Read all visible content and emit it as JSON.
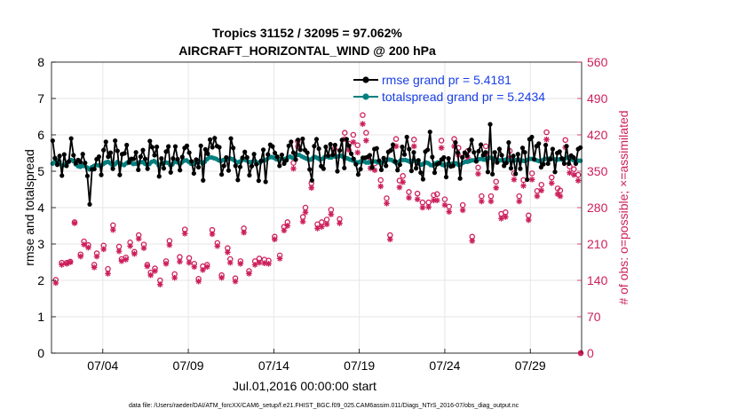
{
  "chart_data": {
    "type": "line",
    "title_line1": "Tropics 31152 / 32095 = 97.062%",
    "title_line2": "AIRCRAFT_HORIZONTAL_WIND @ 200 hPa",
    "xlabel": "Jul.01,2016 00:00:00 start",
    "ylabel_left": "rmse and totalspread",
    "ylabel_right": "# of obs: o=possible; ×=assimilated",
    "footnote": "data file: /Users/raeder/DAI/ATM_forcXX/CAM6_setup/f.e21.FHIST_BGC.f09_025.CAM6assim.011/Diags_NTrS_2016-07/obs_diag_output.nc",
    "x_ticks": [
      {
        "x": 3.0,
        "label": "07/04"
      },
      {
        "x": 8.0,
        "label": "07/09"
      },
      {
        "x": 13.0,
        "label": "07/14"
      },
      {
        "x": 18.0,
        "label": "07/19"
      },
      {
        "x": 23.0,
        "label": "07/24"
      },
      {
        "x": 28.0,
        "label": "07/29"
      }
    ],
    "xlim": [
      0,
      31
    ],
    "ylim_left": [
      0,
      8
    ],
    "y_ticks_left": [
      "0",
      "1",
      "2",
      "3",
      "4",
      "5",
      "6",
      "7",
      "8"
    ],
    "ylim_right": [
      0,
      560
    ],
    "y_ticks_right": [
      "0",
      "70",
      "140",
      "210",
      "280",
      "350",
      "420",
      "490",
      "560"
    ],
    "grid": true,
    "legend": {
      "position": "top-right",
      "entries": [
        {
          "label": "rmse grand pr = 5.4181",
          "color": "#000000"
        },
        {
          "label": "totalspread grand pr = 5.2434",
          "color": "#00807f"
        }
      ]
    },
    "series": [
      {
        "name": "rmse",
        "color": "#000000",
        "values": [
          5.84,
          5.36,
          5.18,
          5.42,
          4.88,
          5.46,
          5.15,
          5.27,
          5.9,
          5.44,
          5.22,
          5.31,
          5.25,
          5.47,
          5.23,
          4.87,
          4.09,
          5.05,
          5.06,
          5.33,
          5.4,
          4.9,
          5.58,
          5.81,
          5.4,
          5.51,
          5.07,
          5.84,
          5.56,
          4.9,
          5.47,
          5.49,
          5.72,
          5.24,
          5.34,
          5.34,
          5.52,
          5.04,
          5.4,
          5.58,
          5.34,
          5.07,
          5.83,
          5.66,
          5.44,
          5.67,
          4.86,
          5.35,
          5.08,
          5.54,
          5.68,
          4.97,
          5.35,
          5.68,
          5.33,
          5.03,
          5.39,
          5.64,
          5.7,
          5.51,
          5.27,
          4.94,
          5.32,
          5.11,
          5.7,
          4.75,
          5.6,
          5.48,
          5.87,
          5.66,
          5.91,
          5.69,
          5.66,
          4.91,
          5.15,
          5.38,
          5.02,
          5.9,
          5.64,
          5.15,
          4.76,
          5.12,
          5.37,
          5.53,
          5.38,
          4.89,
          5.14,
          5.47,
          5.19,
          4.74,
          5.28,
          5.59,
          4.71,
          5.46,
          5.73,
          5.68,
          5.5,
          5.4,
          5.15,
          5.45,
          5.21,
          5.3,
          5.7,
          5.81,
          5.51,
          5.32,
          5.86,
          5.59,
          5.89,
          5.58,
          5.51,
          5.05,
          4.75,
          5.69,
          5.88,
          5.62,
          5.14,
          5.07,
          5.67,
          5.43,
          5.74,
          5.45,
          5.72,
          5.0,
          5.57,
          5.86,
          5.09,
          5.88,
          5.7,
          5.48,
          5.34,
          5.19,
          4.91,
          5.06,
          5.37,
          5.37,
          5.39,
          5.44,
          5.1,
          5.61,
          5.63,
          5.29,
          5.04,
          5.36,
          5.15,
          5.53,
          5.57,
          5.73,
          5.27,
          5.03,
          5.18,
          5.67,
          5.46,
          5.94,
          5.61,
          5.01,
          5.52,
          5.08,
          5.3,
          4.96,
          4.78,
          5.54,
          5.59,
          6.08,
          5.39,
          4.96,
          5.19,
          5.22,
          5.32,
          5.38,
          4.84,
          5.35,
          5.13,
          5.15,
          5.79,
          5.51,
          4.8,
          5.38,
          5.51,
          5.43,
          5.59,
          5.86,
          5.52,
          5.27,
          5.55,
          5.73,
          5.44,
          5.52,
          4.98,
          6.29,
          4.92,
          5.52,
          5.24,
          5.61,
          5.44,
          5.15,
          5.23,
          5.79,
          5.08,
          5.42,
          4.93,
          5.47,
          5.07,
          5.64,
          5.52,
          4.77,
          5.88,
          5.94,
          5.33,
          5.69,
          5.76,
          5.11,
          5.19,
          5.72,
          5.21,
          5.33,
          5.61,
          4.98,
          5.5,
          5.54,
          5.35,
          5.21,
          5.69,
          5.21,
          5.43,
          5.38,
          5.21,
          5.61,
          5.65
        ]
      },
      {
        "name": "totalspread",
        "color": "#00807f",
        "values": [
          5.21,
          5.26,
          5.3,
          5.26,
          5.16,
          5.17,
          5.21,
          5.26,
          5.31,
          5.28,
          5.19,
          5.14,
          5.12,
          5.15,
          5.14,
          5.1,
          5.05,
          5.11,
          5.15,
          5.17,
          5.16,
          5.15,
          5.2,
          5.24,
          5.26,
          5.22,
          5.15,
          5.19,
          5.25,
          5.22,
          5.19,
          5.17,
          5.22,
          5.27,
          5.24,
          5.2,
          5.21,
          5.23,
          5.25,
          5.25,
          5.21,
          5.17,
          5.2,
          5.26,
          5.28,
          5.24,
          5.16,
          5.2,
          5.22,
          5.24,
          5.23,
          5.17,
          5.19,
          5.26,
          5.25,
          5.22,
          5.24,
          5.29,
          5.3,
          5.26,
          5.21,
          5.2,
          5.24,
          5.27,
          5.26,
          5.22,
          5.26,
          5.33,
          5.38,
          5.38,
          5.36,
          5.34,
          5.3,
          5.28,
          5.31,
          5.33,
          5.34,
          5.35,
          5.33,
          5.29,
          5.24,
          5.26,
          5.3,
          5.32,
          5.3,
          5.26,
          5.25,
          5.27,
          5.27,
          5.23,
          5.24,
          5.29,
          5.3,
          5.33,
          5.38,
          5.39,
          5.37,
          5.33,
          5.32,
          5.34,
          5.33,
          5.34,
          5.38,
          5.4,
          5.37,
          5.38,
          5.45,
          5.45,
          5.41,
          5.38,
          5.35,
          5.32,
          5.32,
          5.37,
          5.39,
          5.36,
          5.32,
          5.34,
          5.39,
          5.4,
          5.38,
          5.38,
          5.41,
          5.4,
          5.41,
          5.43,
          5.39,
          5.37,
          5.35,
          5.32,
          5.3,
          5.27,
          5.24,
          5.25,
          5.28,
          5.27,
          5.24,
          5.24,
          5.25,
          5.27,
          5.27,
          5.25,
          5.23,
          5.24,
          5.27,
          5.31,
          5.32,
          5.31,
          5.27,
          5.23,
          5.25,
          5.3,
          5.31,
          5.31,
          5.29,
          5.26,
          5.28,
          5.29,
          5.26,
          5.21,
          5.18,
          5.21,
          5.24,
          5.22,
          5.17,
          5.16,
          5.21,
          5.24,
          5.23,
          5.18,
          5.16,
          5.19,
          5.2,
          5.2,
          5.22,
          5.22,
          5.18,
          5.18,
          5.23,
          5.26,
          5.26,
          5.28,
          5.3,
          5.3,
          5.3,
          5.33,
          5.34,
          5.32,
          5.32,
          5.36,
          5.37,
          5.35,
          5.33,
          5.31,
          5.3,
          5.3,
          5.31,
          5.33,
          5.3,
          5.29,
          5.29,
          5.31,
          5.31,
          5.31,
          5.29,
          5.28,
          5.31,
          5.34,
          5.34,
          5.32,
          5.3,
          5.28,
          5.28,
          5.32,
          5.34,
          5.34,
          5.36,
          5.34,
          5.32,
          5.32,
          5.33,
          5.32,
          5.33,
          5.37,
          5.37,
          5.33,
          5.3,
          5.29,
          5.29,
          5.29
        ]
      }
    ],
    "obs_possible": [
      [
        0.25,
        141
      ],
      [
        0.6,
        174
      ],
      [
        0.9,
        174
      ],
      [
        1.1,
        176
      ],
      [
        1.35,
        252
      ],
      [
        1.7,
        190
      ],
      [
        1.9,
        215
      ],
      [
        2.15,
        208
      ],
      [
        2.5,
        170
      ],
      [
        2.65,
        192
      ],
      [
        3.05,
        207
      ],
      [
        3.3,
        162
      ],
      [
        3.6,
        246
      ],
      [
        3.95,
        205
      ],
      [
        4.1,
        181
      ],
      [
        4.35,
        184
      ],
      [
        4.6,
        213
      ],
      [
        4.85,
        195
      ],
      [
        5.1,
        227
      ],
      [
        5.4,
        209
      ],
      [
        5.6,
        170
      ],
      [
        5.8,
        155
      ],
      [
        6.05,
        163
      ],
      [
        6.35,
        140
      ],
      [
        6.7,
        177
      ],
      [
        6.9,
        216
      ],
      [
        7.2,
        152
      ],
      [
        7.5,
        185
      ],
      [
        7.8,
        238
      ],
      [
        8.05,
        183
      ],
      [
        8.35,
        172
      ],
      [
        8.6,
        143
      ],
      [
        8.85,
        167
      ],
      [
        9.1,
        170
      ],
      [
        9.4,
        237
      ],
      [
        9.7,
        212
      ],
      [
        9.95,
        150
      ],
      [
        10.3,
        202
      ],
      [
        10.45,
        181
      ],
      [
        10.75,
        144
      ],
      [
        11.05,
        177
      ],
      [
        11.25,
        240
      ],
      [
        11.55,
        158
      ],
      [
        11.9,
        177
      ],
      [
        12.15,
        182
      ],
      [
        12.45,
        180
      ],
      [
        12.7,
        178
      ],
      [
        13.05,
        224
      ],
      [
        13.35,
        188
      ],
      [
        13.6,
        243
      ],
      [
        13.8,
        252
      ],
      [
        14.15,
        366
      ],
      [
        14.4,
        408
      ],
      [
        14.7,
        262
      ],
      [
        14.85,
        280
      ],
      [
        15.2,
        327
      ],
      [
        15.55,
        248
      ],
      [
        15.8,
        252
      ],
      [
        16.1,
        257
      ],
      [
        16.35,
        276
      ],
      [
        16.55,
        393
      ],
      [
        16.85,
        258
      ],
      [
        17.15,
        424
      ],
      [
        17.4,
        403
      ],
      [
        17.65,
        420
      ],
      [
        17.9,
        400
      ],
      [
        18.2,
        458
      ],
      [
        18.4,
        424
      ],
      [
        18.65,
        369
      ],
      [
        18.9,
        365
      ],
      [
        19.25,
        333
      ],
      [
        19.6,
        298
      ],
      [
        19.8,
        227
      ],
      [
        20.15,
        412
      ],
      [
        20.35,
        332
      ],
      [
        20.55,
        341
      ],
      [
        20.9,
        310
      ],
      [
        21.2,
        411
      ],
      [
        21.4,
        307
      ],
      [
        21.7,
        290
      ],
      [
        22.05,
        290
      ],
      [
        22.35,
        304
      ],
      [
        22.55,
        306
      ],
      [
        22.8,
        409
      ],
      [
        23.0,
        296
      ],
      [
        23.25,
        282
      ],
      [
        23.55,
        412
      ],
      [
        23.8,
        395
      ],
      [
        24.05,
        285
      ],
      [
        24.35,
        389
      ],
      [
        24.6,
        224
      ],
      [
        24.95,
        357
      ],
      [
        25.15,
        302
      ],
      [
        25.4,
        398
      ],
      [
        25.7,
        302
      ],
      [
        26.0,
        330
      ],
      [
        26.3,
        268
      ],
      [
        26.55,
        271
      ],
      [
        26.8,
        389
      ],
      [
        27.05,
        346
      ],
      [
        27.35,
        302
      ],
      [
        27.6,
        333
      ],
      [
        27.9,
        265
      ],
      [
        28.1,
        346
      ],
      [
        28.4,
        312
      ],
      [
        28.65,
        324
      ],
      [
        28.95,
        425
      ],
      [
        29.25,
        338
      ],
      [
        29.6,
        317
      ],
      [
        29.75,
        313
      ],
      [
        30.05,
        410
      ],
      [
        30.3,
        359
      ],
      [
        30.55,
        354
      ],
      [
        30.8,
        343
      ],
      [
        30.95,
        0
      ]
    ],
    "obs_assimilated": [
      [
        0.25,
        135
      ],
      [
        0.6,
        170
      ],
      [
        0.9,
        172
      ],
      [
        1.1,
        175
      ],
      [
        1.35,
        250
      ],
      [
        1.7,
        186
      ],
      [
        1.9,
        209
      ],
      [
        2.15,
        203
      ],
      [
        2.5,
        165
      ],
      [
        2.65,
        186
      ],
      [
        3.05,
        200
      ],
      [
        3.3,
        153
      ],
      [
        3.6,
        237
      ],
      [
        3.95,
        196
      ],
      [
        4.1,
        177
      ],
      [
        4.35,
        180
      ],
      [
        4.6,
        206
      ],
      [
        4.85,
        191
      ],
      [
        5.1,
        220
      ],
      [
        5.4,
        202
      ],
      [
        5.6,
        167
      ],
      [
        5.8,
        150
      ],
      [
        6.05,
        158
      ],
      [
        6.35,
        132
      ],
      [
        6.7,
        172
      ],
      [
        6.9,
        208
      ],
      [
        7.2,
        145
      ],
      [
        7.5,
        176
      ],
      [
        7.8,
        230
      ],
      [
        8.05,
        174
      ],
      [
        8.35,
        166
      ],
      [
        8.6,
        138
      ],
      [
        8.85,
        160
      ],
      [
        9.1,
        166
      ],
      [
        9.4,
        229
      ],
      [
        9.7,
        206
      ],
      [
        9.95,
        145
      ],
      [
        10.3,
        194
      ],
      [
        10.45,
        174
      ],
      [
        10.75,
        138
      ],
      [
        11.05,
        172
      ],
      [
        11.25,
        232
      ],
      [
        11.55,
        153
      ],
      [
        11.9,
        170
      ],
      [
        12.15,
        174
      ],
      [
        12.45,
        173
      ],
      [
        12.7,
        172
      ],
      [
        13.05,
        219
      ],
      [
        13.35,
        182
      ],
      [
        13.6,
        236
      ],
      [
        13.8,
        245
      ],
      [
        14.15,
        355
      ],
      [
        14.4,
        398
      ],
      [
        14.7,
        253
      ],
      [
        14.85,
        271
      ],
      [
        15.2,
        318
      ],
      [
        15.55,
        240
      ],
      [
        15.8,
        243
      ],
      [
        16.1,
        248
      ],
      [
        16.35,
        267
      ],
      [
        16.55,
        381
      ],
      [
        16.85,
        250
      ],
      [
        17.15,
        412
      ],
      [
        17.4,
        391
      ],
      [
        17.65,
        406
      ],
      [
        17.9,
        386
      ],
      [
        18.2,
        441
      ],
      [
        18.4,
        409
      ],
      [
        18.65,
        356
      ],
      [
        18.9,
        352
      ],
      [
        19.25,
        321
      ],
      [
        19.6,
        288
      ],
      [
        19.8,
        219
      ],
      [
        20.15,
        398
      ],
      [
        20.35,
        319
      ],
      [
        20.55,
        329
      ],
      [
        20.9,
        299
      ],
      [
        21.2,
        398
      ],
      [
        21.4,
        296
      ],
      [
        21.7,
        280
      ],
      [
        22.05,
        281
      ],
      [
        22.35,
        294
      ],
      [
        22.55,
        294
      ],
      [
        22.8,
        395
      ],
      [
        23.0,
        285
      ],
      [
        23.25,
        272
      ],
      [
        23.55,
        398
      ],
      [
        23.8,
        381
      ],
      [
        24.05,
        275
      ],
      [
        24.35,
        376
      ],
      [
        24.6,
        216
      ],
      [
        24.95,
        345
      ],
      [
        25.15,
        292
      ],
      [
        25.4,
        384
      ],
      [
        25.7,
        292
      ],
      [
        26.0,
        318
      ],
      [
        26.3,
        259
      ],
      [
        26.55,
        262
      ],
      [
        26.8,
        376
      ],
      [
        27.05,
        334
      ],
      [
        27.35,
        292
      ],
      [
        27.6,
        322
      ],
      [
        27.9,
        256
      ],
      [
        28.1,
        334
      ],
      [
        28.4,
        302
      ],
      [
        28.65,
        313
      ],
      [
        28.95,
        411
      ],
      [
        29.25,
        327
      ],
      [
        29.6,
        306
      ],
      [
        29.75,
        302
      ],
      [
        30.05,
        396
      ],
      [
        30.3,
        347
      ],
      [
        30.55,
        343
      ],
      [
        30.8,
        332
      ],
      [
        30.95,
        0
      ]
    ],
    "colors": {
      "rmse": "#000000",
      "totalspread": "#00807f",
      "obs": "#cc1f5c",
      "legend_text": "#1a3fe6",
      "grid": "#e6e6e6"
    }
  }
}
